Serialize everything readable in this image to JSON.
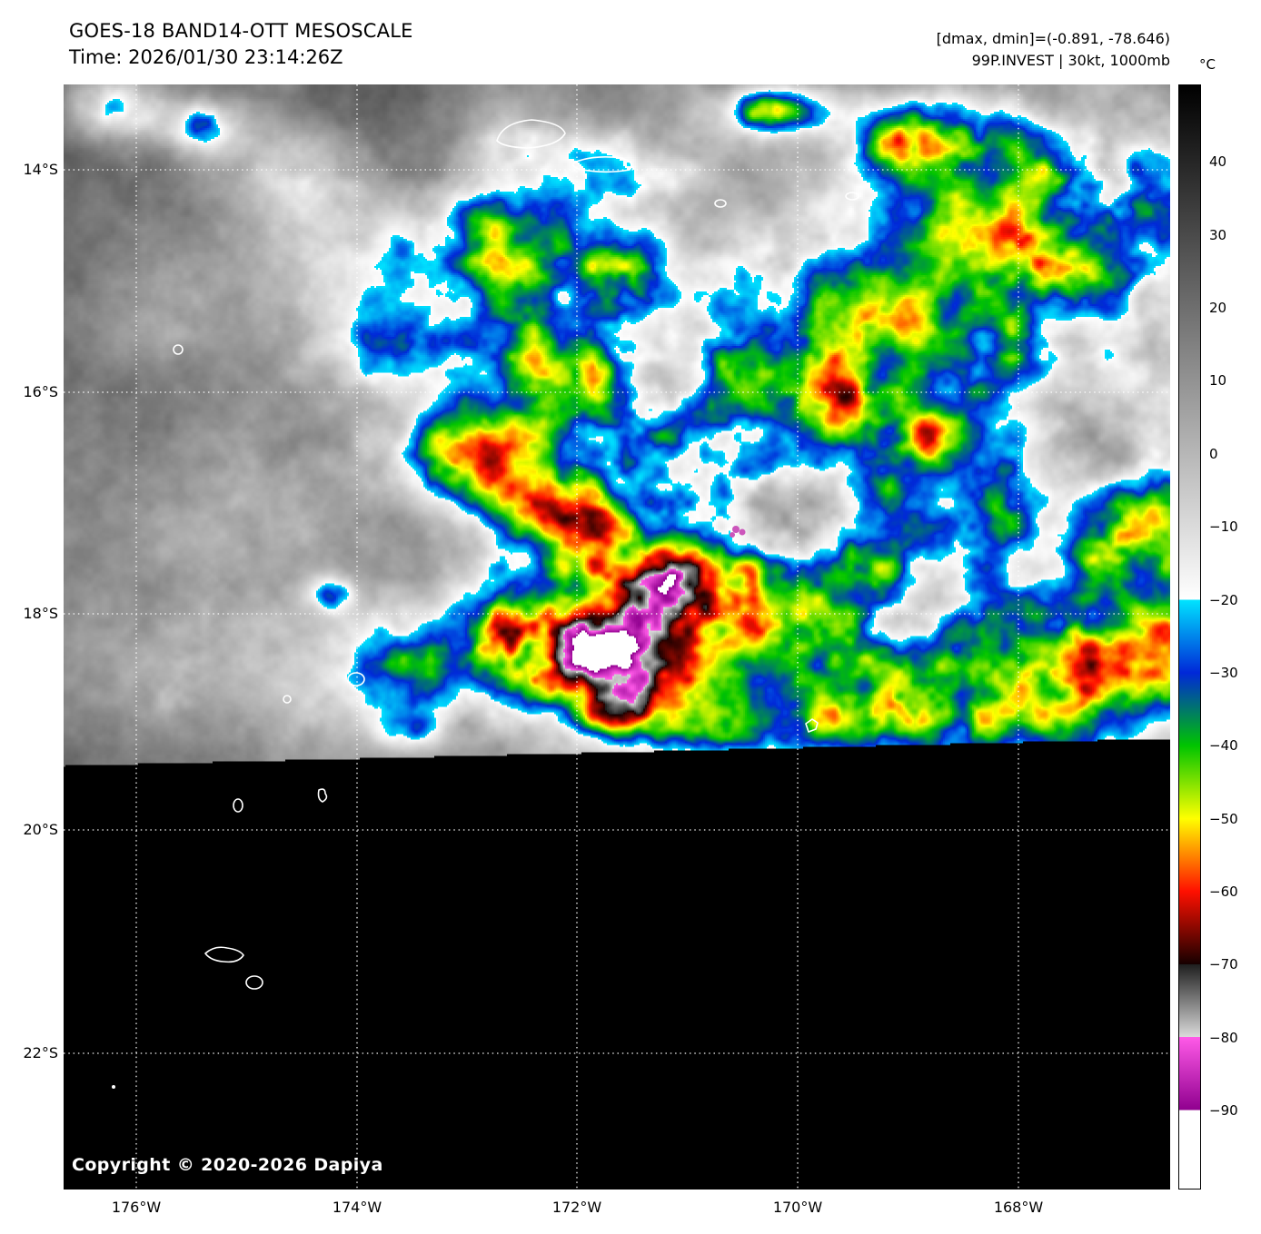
{
  "header": {
    "title": "GOES-18 BAND14-OTT MESOSCALE",
    "time_line": "Time: 2026/01/30 23:14:26Z",
    "dmax_dmin_line": "[dmax, dmin]=(-0.891, -78.646)",
    "storm_line": "99P.INVEST | 30kt, 1000mb"
  },
  "map": {
    "copyright": "Copyright © 2020-2026 Dapiya",
    "lat_labels": [
      "14°S",
      "16°S",
      "18°S",
      "20°S",
      "22°S"
    ],
    "lon_labels": [
      "176°W",
      "174°W",
      "172°W",
      "170°W",
      "168°W"
    ],
    "grid_color": "#ffffff",
    "coastline_color": "#ffffff",
    "no_data_color": "#000000",
    "storm_marker_color": "#cc55bb"
  },
  "colorbar": {
    "unit": "°C",
    "top_temp": 50.6,
    "bottom_temp": -100.8,
    "ticks": [
      {
        "label": "40",
        "t": 40
      },
      {
        "label": "30",
        "t": 30
      },
      {
        "label": "20",
        "t": 20
      },
      {
        "label": "10",
        "t": 10
      },
      {
        "label": "0",
        "t": 0
      },
      {
        "label": "−10",
        "t": -10
      },
      {
        "label": "−20",
        "t": -20
      },
      {
        "label": "−30",
        "t": -30
      },
      {
        "label": "−40",
        "t": -40
      },
      {
        "label": "−50",
        "t": -50
      },
      {
        "label": "−60",
        "t": -60
      },
      {
        "label": "−70",
        "t": -70
      },
      {
        "label": "−80",
        "t": -80
      },
      {
        "label": "−90",
        "t": -90
      }
    ],
    "palette": [
      {
        "t": 50.6,
        "c": "#000000"
      },
      {
        "t": -20,
        "c": "#ffffff"
      },
      {
        "t": -20,
        "c": "#00e4ff"
      },
      {
        "t": -30,
        "c": "#0028d8"
      },
      {
        "t": -40,
        "c": "#00c400"
      },
      {
        "t": -50,
        "c": "#ffff00"
      },
      {
        "t": -60,
        "c": "#ff1000"
      },
      {
        "t": -70,
        "c": "#160000"
      },
      {
        "t": -70,
        "c": "#1e1e1e"
      },
      {
        "t": -80,
        "c": "#dadada"
      },
      {
        "t": -80,
        "c": "#ff5ae8"
      },
      {
        "t": -90,
        "c": "#90008f"
      },
      {
        "t": -90,
        "c": "#ffffff"
      },
      {
        "t": -100.8,
        "c": "#ffffff"
      }
    ]
  }
}
